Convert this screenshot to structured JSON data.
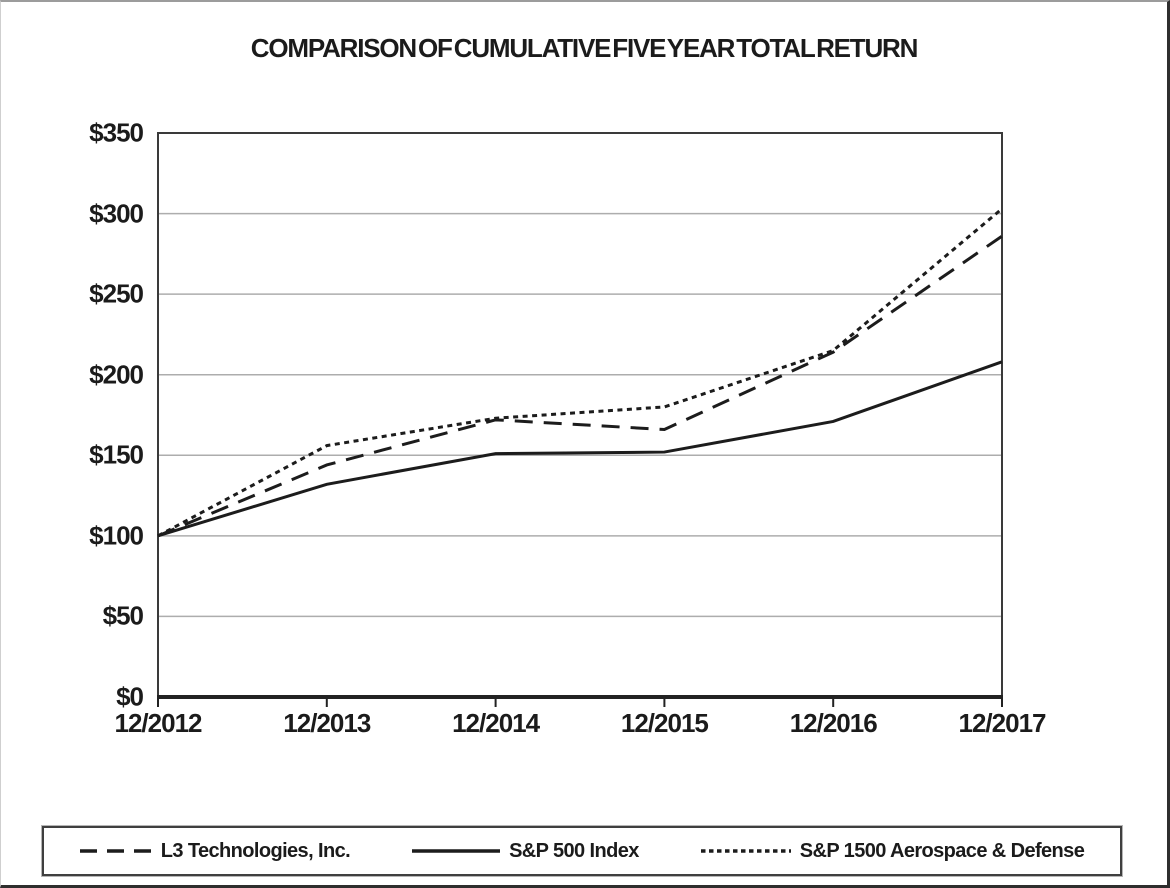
{
  "chart_data": {
    "type": "line",
    "title": "COMPARISON OF CUMULATIVE FIVE YEAR TOTAL RETURN",
    "x_categories": [
      "12/2012",
      "12/2013",
      "12/2014",
      "12/2015",
      "12/2016",
      "12/2017"
    ],
    "y_tick_labels": [
      "$0",
      "$50",
      "$100",
      "$150",
      "$200",
      "$250",
      "$300",
      "$350"
    ],
    "ylim": [
      0,
      350
    ],
    "y_step": 50,
    "grid": "horizontal-only",
    "legend_position": "bottom-boxed",
    "series": [
      {
        "name": "L3 Technologies, Inc.",
        "style": "dashed",
        "values": [
          100,
          144,
          172,
          166,
          214,
          286
        ]
      },
      {
        "name": "S&P 500 Index",
        "style": "solid",
        "values": [
          100,
          132,
          151,
          152,
          171,
          208
        ]
      },
      {
        "name": "S&P 1500 Aerospace & Defense",
        "style": "dotted",
        "values": [
          100,
          156,
          173,
          180,
          215,
          303
        ]
      }
    ],
    "colors": {
      "line": "#1c1c1c",
      "grid": "#adadad",
      "axis_frame": "#3a3a3a",
      "text": "#1b1b1b",
      "background": "#ffffff"
    }
  }
}
